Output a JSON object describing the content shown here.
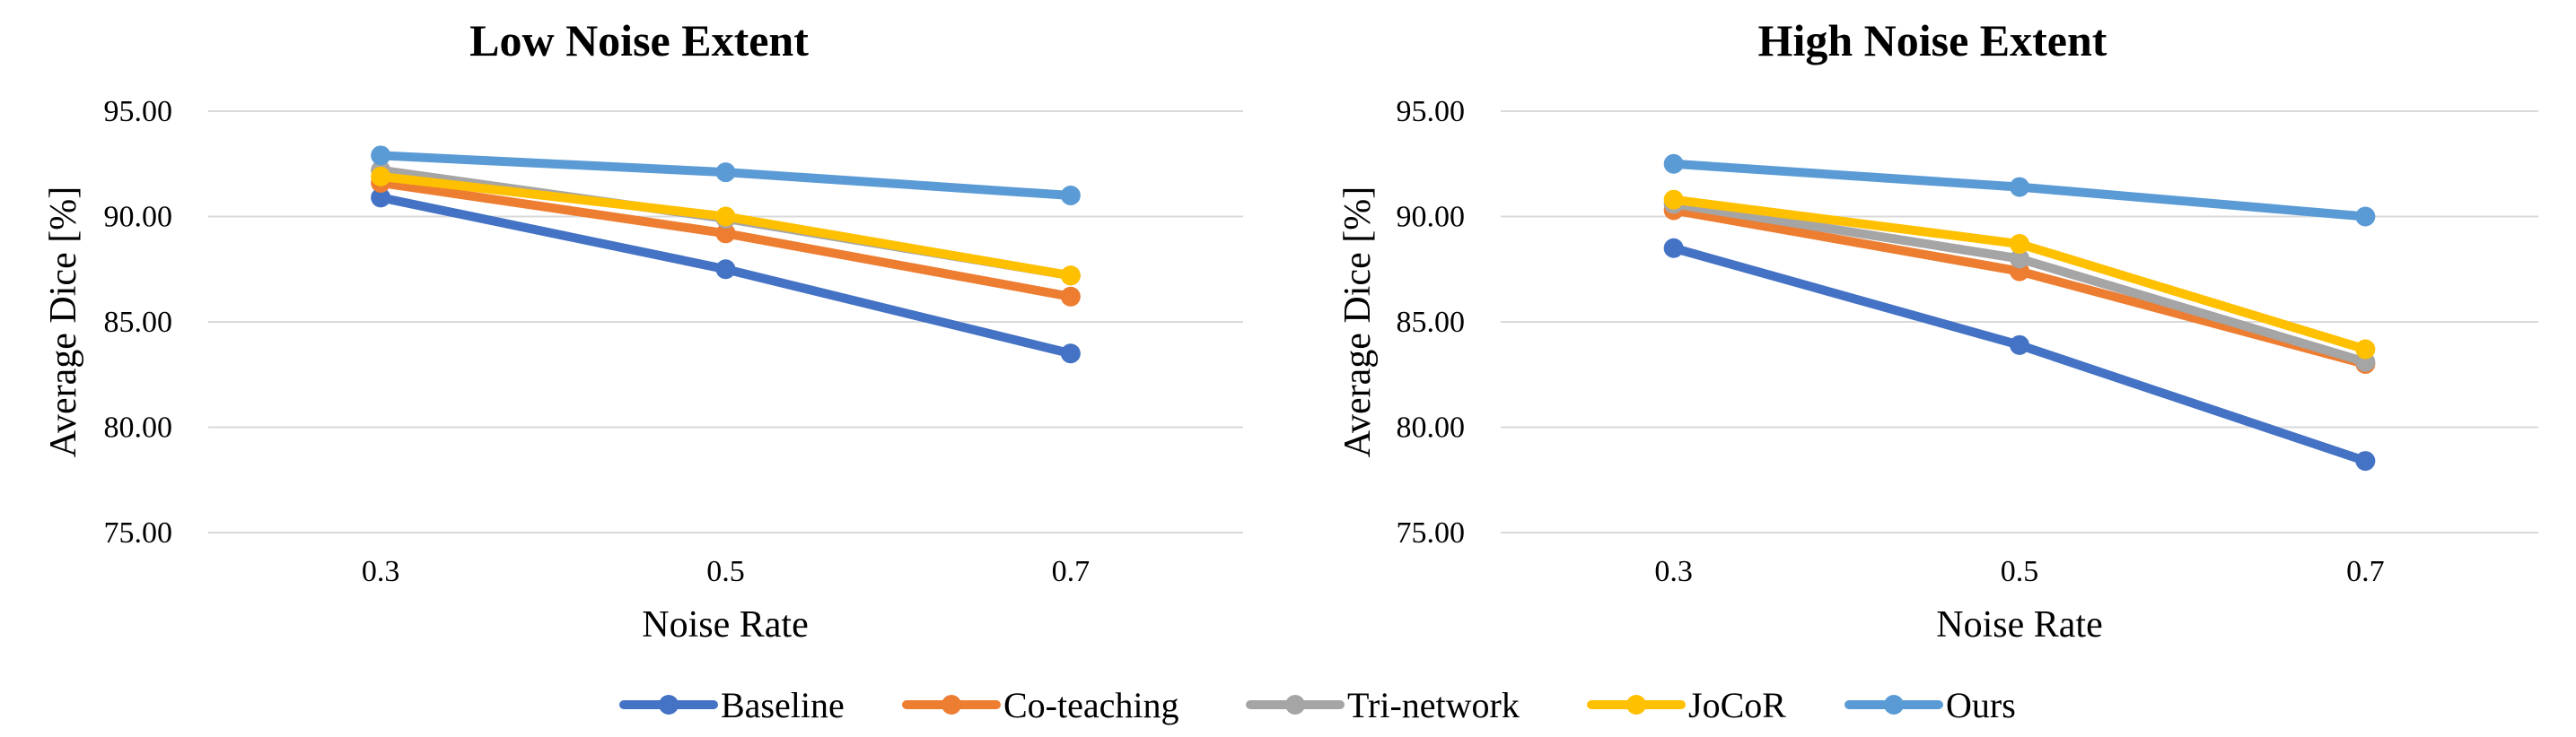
{
  "colors": {
    "Baseline": "#4472C4",
    "Co-teaching": "#ED7D31",
    "Tri-network": "#A5A5A5",
    "JoCoR": "#FFC000",
    "Ours": "#5B9BD5"
  },
  "legend": [
    "Baseline",
    "Co-teaching",
    "Tri-network",
    "JoCoR",
    "Ours"
  ],
  "chart_data": [
    {
      "type": "line",
      "title": "Low Noise Extent",
      "xlabel": "Noise Rate",
      "ylabel": "Average Dice [%]",
      "categories": [
        "0.3",
        "0.5",
        "0.7"
      ],
      "yticks": [
        "75.00",
        "80.00",
        "85.00",
        "90.00",
        "95.00"
      ],
      "ylim": [
        75,
        95
      ],
      "grid": true,
      "legend_position": "bottom",
      "series": [
        {
          "name": "Baseline",
          "values": [
            90.9,
            87.5,
            83.5
          ]
        },
        {
          "name": "Co-teaching",
          "values": [
            91.6,
            89.2,
            86.2
          ]
        },
        {
          "name": "Tri-network",
          "values": [
            92.2,
            89.9,
            87.2
          ]
        },
        {
          "name": "JoCoR",
          "values": [
            91.9,
            90.0,
            87.2
          ]
        },
        {
          "name": "Ours",
          "values": [
            92.9,
            92.1,
            91.0
          ]
        }
      ]
    },
    {
      "type": "line",
      "title": "High Noise Extent",
      "xlabel": "Noise Rate",
      "ylabel": "Average Dice [%]",
      "categories": [
        "0.3",
        "0.5",
        "0.7"
      ],
      "yticks": [
        "75.00",
        "80.00",
        "85.00",
        "90.00",
        "95.00"
      ],
      "ylim": [
        75,
        95
      ],
      "grid": true,
      "legend_position": "bottom",
      "series": [
        {
          "name": "Baseline",
          "values": [
            88.5,
            83.9,
            78.4
          ]
        },
        {
          "name": "Co-teaching",
          "values": [
            90.3,
            87.4,
            83.0
          ]
        },
        {
          "name": "Tri-network",
          "values": [
            90.6,
            88.0,
            83.1
          ]
        },
        {
          "name": "JoCoR",
          "values": [
            90.8,
            88.7,
            83.7
          ]
        },
        {
          "name": "Ours",
          "values": [
            92.5,
            91.4,
            90.0
          ]
        }
      ]
    }
  ]
}
